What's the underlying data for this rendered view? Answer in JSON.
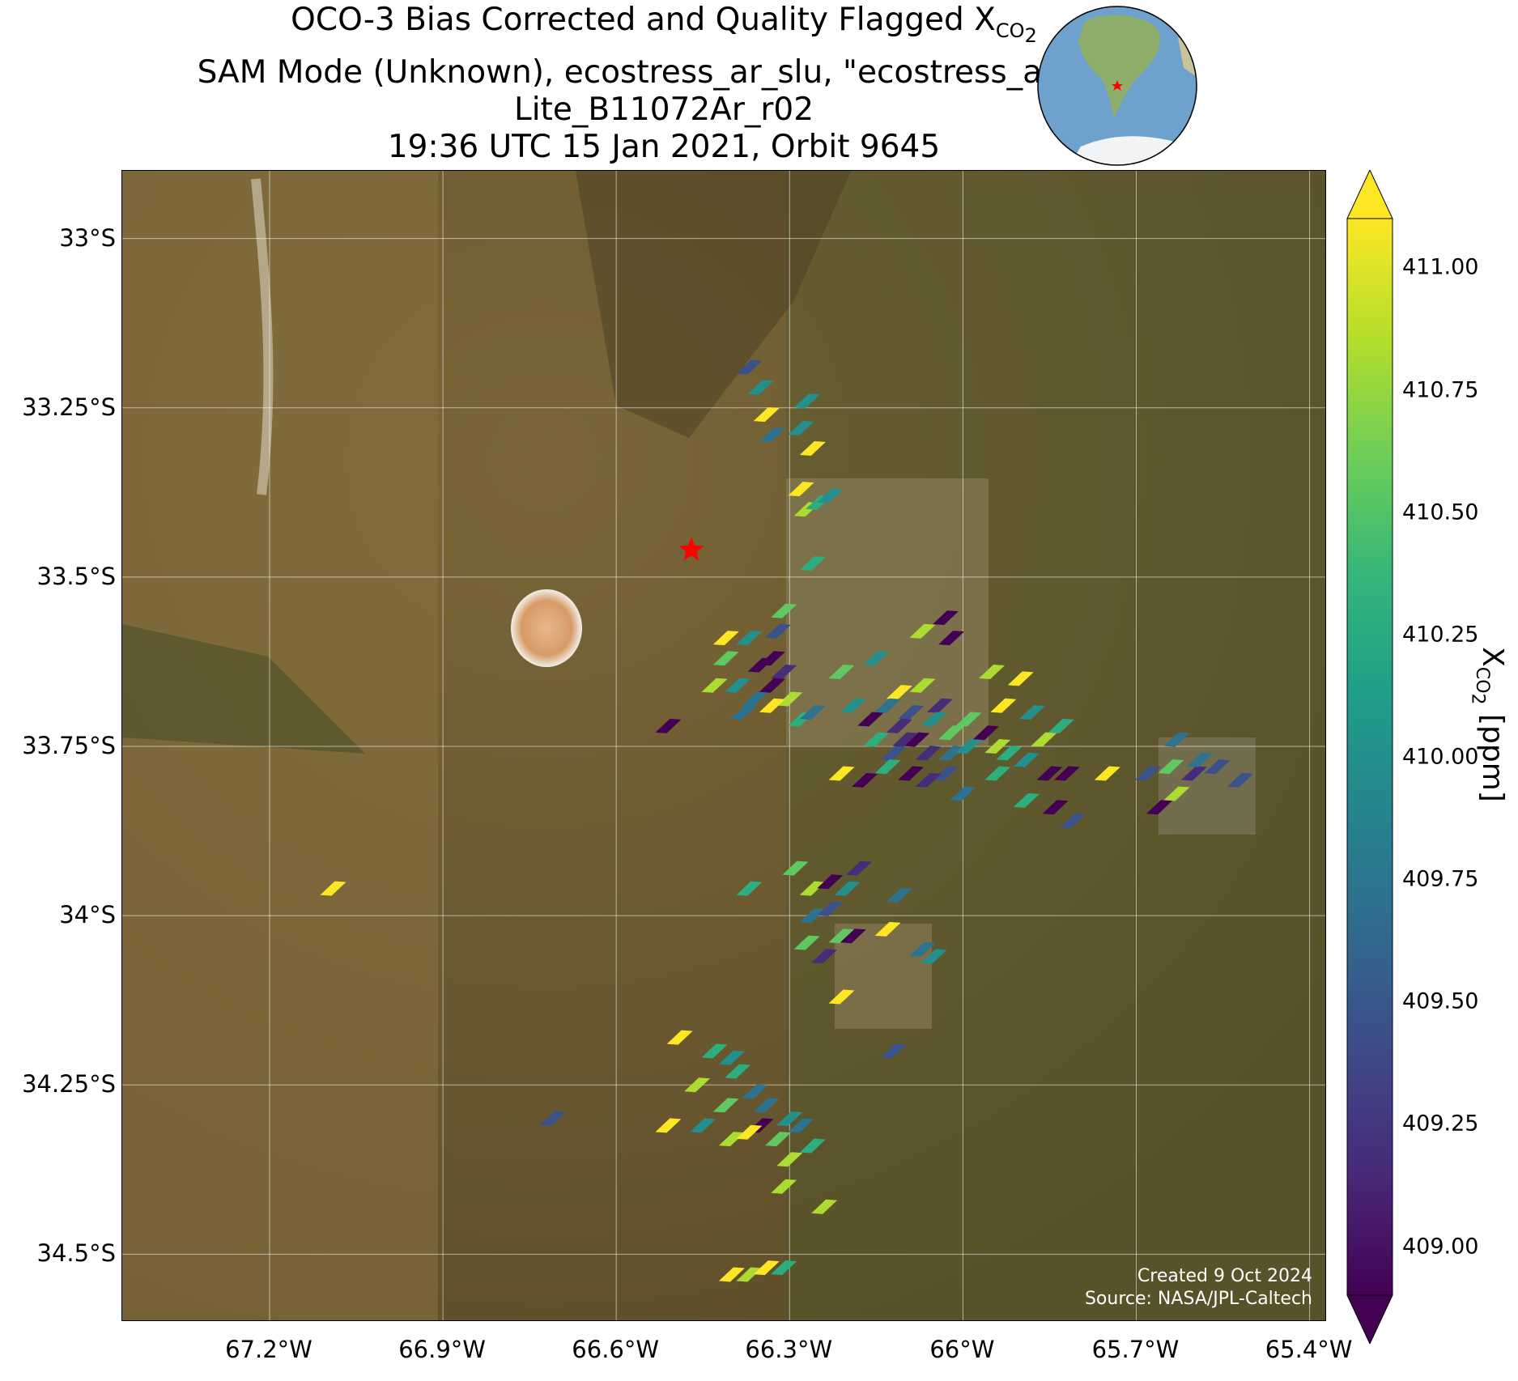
{
  "title": {
    "line1_main": "OCO-3 Bias Corrected and Quality Flagged X",
    "line1_sub": "CO",
    "line1_subsub": "2",
    "line2": "SAM Mode (Unknown), ecostress_ar_slu, \"ecostress_ar_slu\"",
    "line3": "Lite_B11072Ar_r02",
    "line4": "19:36 UTC 15 Jan 2021, Orbit 9645"
  },
  "axes": {
    "lat_ticks": [
      "33°S",
      "33.25°S",
      "33.5°S",
      "33.75°S",
      "34°S",
      "34.25°S",
      "34.5°S"
    ],
    "lat_values": [
      -33.0,
      -33.25,
      -33.5,
      -33.75,
      -34.0,
      -34.25,
      -34.5
    ],
    "lon_ticks": [
      "67.2°W",
      "66.9°W",
      "66.6°W",
      "66.3°W",
      "66°W",
      "65.7°W",
      "65.4°W"
    ],
    "lon_values": [
      -67.2,
      -66.9,
      -66.6,
      -66.3,
      -66.0,
      -65.7,
      -65.4
    ],
    "lon_range": [
      -67.455,
      -65.37
    ],
    "lat_range": [
      -32.9,
      -34.6
    ]
  },
  "credit": {
    "line1": "Created 9 Oct 2024",
    "line2": "Source: NASA/JPL-Caltech"
  },
  "colorbar": {
    "label_main": "X",
    "label_sub": "CO",
    "label_subsub": "2",
    "label_unit": " [ppm]",
    "ticks": [
      "411.00",
      "410.75",
      "410.50",
      "410.25",
      "410.00",
      "409.75",
      "409.50",
      "409.25",
      "409.00"
    ],
    "tick_values": [
      411.0,
      410.75,
      410.5,
      410.25,
      410.0,
      409.75,
      409.5,
      409.25,
      409.0
    ],
    "range": [
      408.9,
      411.1
    ],
    "colormap": "viridis"
  },
  "target": {
    "lon": -66.47,
    "lat": -33.46,
    "marker": "red-star"
  },
  "soundings": [
    [
      -66.37,
      -33.19,
      409.5
    ],
    [
      -66.35,
      -33.22,
      410.0
    ],
    [
      -66.34,
      -33.26,
      411.0
    ],
    [
      -66.33,
      -33.29,
      409.75
    ],
    [
      -66.27,
      -33.24,
      410.0
    ],
    [
      -66.28,
      -33.28,
      410.0
    ],
    [
      -66.26,
      -33.31,
      411.0
    ],
    [
      -66.28,
      -33.37,
      411.0
    ],
    [
      -66.27,
      -33.4,
      410.75
    ],
    [
      -66.25,
      -33.39,
      410.25
    ],
    [
      -66.23,
      -33.38,
      410.0
    ],
    [
      -66.26,
      -33.48,
      410.25
    ],
    [
      -66.31,
      -33.55,
      410.5
    ],
    [
      -66.32,
      -33.58,
      409.5
    ],
    [
      -66.37,
      -33.59,
      410.0
    ],
    [
      -66.41,
      -33.59,
      411.0
    ],
    [
      -66.41,
      -33.62,
      410.5
    ],
    [
      -66.43,
      -33.66,
      410.75
    ],
    [
      -66.39,
      -33.66,
      410.0
    ],
    [
      -66.36,
      -33.68,
      409.75
    ],
    [
      -66.35,
      -33.63,
      409.0
    ],
    [
      -66.33,
      -33.62,
      409.0
    ],
    [
      -66.31,
      -33.64,
      409.25
    ],
    [
      -66.33,
      -33.66,
      409.0
    ],
    [
      -66.3,
      -33.68,
      410.75
    ],
    [
      -66.28,
      -33.71,
      410.25
    ],
    [
      -66.26,
      -33.7,
      409.75
    ],
    [
      -66.33,
      -33.69,
      411.0
    ],
    [
      -66.38,
      -33.7,
      409.75
    ],
    [
      -66.51,
      -33.72,
      409.0
    ],
    [
      -66.21,
      -33.64,
      410.5
    ],
    [
      -66.15,
      -33.62,
      410.0
    ],
    [
      -66.07,
      -33.58,
      410.75
    ],
    [
      -66.03,
      -33.56,
      409.0
    ],
    [
      -66.02,
      -33.59,
      409.0
    ],
    [
      -65.95,
      -33.64,
      410.75
    ],
    [
      -65.9,
      -33.65,
      411.0
    ],
    [
      -65.93,
      -33.69,
      411.0
    ],
    [
      -66.11,
      -33.67,
      411.0
    ],
    [
      -66.07,
      -33.66,
      410.75
    ],
    [
      -66.04,
      -33.69,
      409.25
    ],
    [
      -66.09,
      -33.7,
      409.5
    ],
    [
      -66.05,
      -33.71,
      410.0
    ],
    [
      -66.16,
      -33.71,
      409.0
    ],
    [
      -66.13,
      -33.69,
      409.75
    ],
    [
      -66.11,
      -33.72,
      409.25
    ],
    [
      -66.08,
      -33.74,
      409.0
    ],
    [
      -66.02,
      -33.73,
      410.5
    ],
    [
      -65.99,
      -33.71,
      410.5
    ],
    [
      -65.96,
      -33.73,
      409.0
    ],
    [
      -65.94,
      -33.75,
      410.75
    ],
    [
      -66.19,
      -33.69,
      410.0
    ],
    [
      -66.15,
      -33.74,
      410.25
    ],
    [
      -66.12,
      -33.76,
      409.5
    ],
    [
      -66.1,
      -33.74,
      409.25
    ],
    [
      -66.06,
      -33.76,
      409.25
    ],
    [
      -66.02,
      -33.76,
      409.75
    ],
    [
      -65.99,
      -33.75,
      410.0
    ],
    [
      -66.03,
      -33.79,
      409.5
    ],
    [
      -66.06,
      -33.8,
      409.25
    ],
    [
      -66.09,
      -33.79,
      409.0
    ],
    [
      -66.13,
      -33.78,
      410.25
    ],
    [
      -66.17,
      -33.8,
      409.0
    ],
    [
      -66.21,
      -33.79,
      411.0
    ],
    [
      -66.0,
      -33.82,
      409.75
    ],
    [
      -65.94,
      -33.79,
      410.25
    ],
    [
      -65.92,
      -33.76,
      410.25
    ],
    [
      -65.89,
      -33.77,
      410.0
    ],
    [
      -65.86,
      -33.74,
      410.75
    ],
    [
      -65.83,
      -33.72,
      410.25
    ],
    [
      -65.88,
      -33.7,
      410.0
    ],
    [
      -65.85,
      -33.79,
      409.0
    ],
    [
      -65.82,
      -33.79,
      409.0
    ],
    [
      -65.89,
      -33.83,
      410.25
    ],
    [
      -65.84,
      -33.84,
      409.0
    ],
    [
      -65.81,
      -33.86,
      409.5
    ],
    [
      -65.75,
      -33.79,
      411.0
    ],
    [
      -65.68,
      -33.79,
      409.5
    ],
    [
      -65.64,
      -33.78,
      410.5
    ],
    [
      -65.6,
      -33.79,
      409.25
    ],
    [
      -65.59,
      -33.77,
      409.75
    ],
    [
      -65.56,
      -33.78,
      409.5
    ],
    [
      -65.52,
      -33.8,
      409.5
    ],
    [
      -65.63,
      -33.82,
      410.75
    ],
    [
      -65.66,
      -33.84,
      409.0
    ],
    [
      -65.63,
      -33.74,
      409.75
    ],
    [
      -67.09,
      -33.96,
      411.0
    ],
    [
      -66.37,
      -33.96,
      410.25
    ],
    [
      -66.29,
      -33.93,
      410.5
    ],
    [
      -66.26,
      -33.96,
      410.75
    ],
    [
      -66.23,
      -33.95,
      409.0
    ],
    [
      -66.2,
      -33.96,
      410.0
    ],
    [
      -66.18,
      -33.93,
      409.25
    ],
    [
      -66.11,
      -33.97,
      409.75
    ],
    [
      -66.26,
      -34.0,
      409.75
    ],
    [
      -66.23,
      -33.99,
      409.5
    ],
    [
      -66.27,
      -34.04,
      410.5
    ],
    [
      -66.24,
      -34.06,
      409.25
    ],
    [
      -66.21,
      -34.03,
      410.5
    ],
    [
      -66.19,
      -34.03,
      409.0
    ],
    [
      -66.13,
      -34.02,
      411.0
    ],
    [
      -66.07,
      -34.05,
      409.75
    ],
    [
      -66.05,
      -34.06,
      410.0
    ],
    [
      -66.21,
      -34.12,
      411.0
    ],
    [
      -66.12,
      -34.2,
      409.5
    ],
    [
      -66.49,
      -34.18,
      411.0
    ],
    [
      -66.43,
      -34.2,
      410.25
    ],
    [
      -66.4,
      -34.21,
      410.0
    ],
    [
      -66.39,
      -34.23,
      410.25
    ],
    [
      -66.46,
      -34.25,
      410.75
    ],
    [
      -66.41,
      -34.28,
      410.5
    ],
    [
      -66.36,
      -34.26,
      409.75
    ],
    [
      -66.34,
      -34.28,
      409.75
    ],
    [
      -66.3,
      -34.3,
      410.0
    ],
    [
      -66.35,
      -34.31,
      409.0
    ],
    [
      -66.28,
      -34.31,
      409.75
    ],
    [
      -66.51,
      -34.31,
      411.0
    ],
    [
      -66.45,
      -34.31,
      410.0
    ],
    [
      -66.4,
      -34.33,
      410.75
    ],
    [
      -66.37,
      -34.32,
      411.0
    ],
    [
      -66.32,
      -34.33,
      410.5
    ],
    [
      -66.3,
      -34.36,
      410.75
    ],
    [
      -66.26,
      -34.34,
      410.25
    ],
    [
      -66.31,
      -34.4,
      410.75
    ],
    [
      -66.24,
      -34.43,
      410.75
    ],
    [
      -66.4,
      -34.53,
      411.0
    ],
    [
      -66.37,
      -34.53,
      410.75
    ],
    [
      -66.34,
      -34.52,
      411.0
    ],
    [
      -66.31,
      -34.52,
      410.25
    ],
    [
      -66.71,
      -34.3,
      409.5
    ]
  ]
}
